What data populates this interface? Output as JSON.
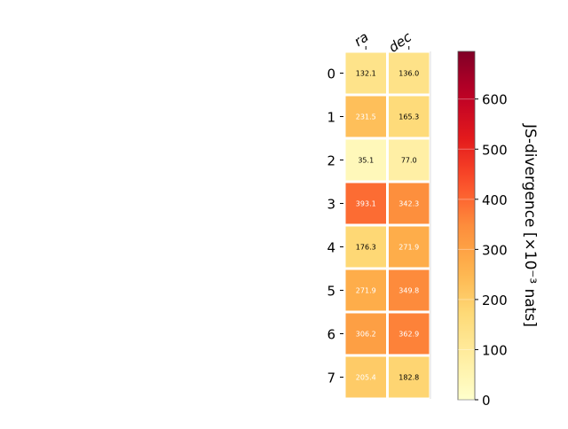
{
  "chart_data": {
    "type": "heatmap",
    "columns": [
      "ra",
      "dec"
    ],
    "rows": [
      "0",
      "1",
      "2",
      "3",
      "4",
      "5",
      "6",
      "7"
    ],
    "values": [
      [
        132.1,
        136.0
      ],
      [
        231.5,
        165.3
      ],
      [
        35.1,
        77.0
      ],
      [
        393.1,
        342.3
      ],
      [
        176.3,
        271.9
      ],
      [
        271.9,
        349.8
      ],
      [
        306.2,
        362.9
      ],
      [
        205.4,
        182.8
      ]
    ],
    "colorbar": {
      "label": "JS-divergence [×10⁻³ nats]",
      "range": [
        0,
        695
      ],
      "ticks": [
        "0",
        "100",
        "200",
        "300",
        "400",
        "500",
        "600"
      ],
      "colormap": "YlOrRd"
    }
  }
}
